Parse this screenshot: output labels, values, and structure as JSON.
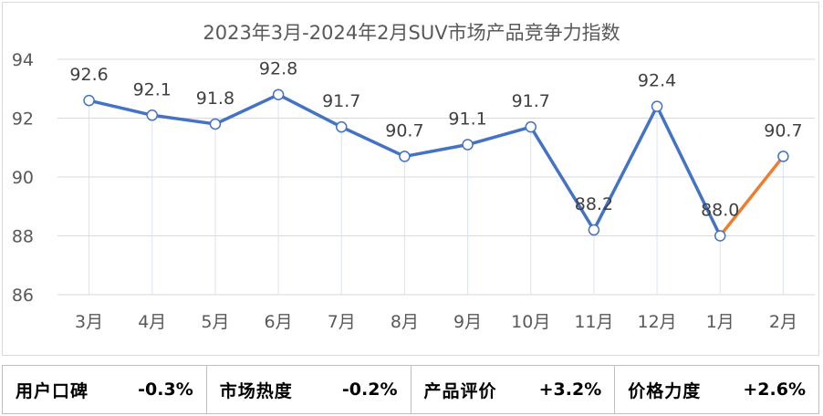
{
  "chart_data": {
    "type": "line",
    "title": "2023年3月-2024年2月SUV市场产品竞争力指数",
    "xlabel": "",
    "ylabel": "",
    "categories": [
      "3月",
      "4月",
      "5月",
      "6月",
      "7月",
      "8月",
      "9月",
      "10月",
      "11月",
      "12月",
      "1月",
      "2月"
    ],
    "values": [
      92.6,
      92.1,
      91.8,
      92.8,
      91.7,
      90.7,
      91.1,
      91.7,
      88.2,
      92.4,
      88.0,
      90.7
    ],
    "data_labels": [
      "92.6",
      "92.1",
      "91.8",
      "92.8",
      "91.7",
      "90.7",
      "91.1",
      "91.7",
      "88.2",
      "92.4",
      "88.0",
      "90.7"
    ],
    "ylim": [
      86,
      94
    ],
    "yticks": [
      "86",
      "88",
      "90",
      "92",
      "94"
    ],
    "grid": "horizontal",
    "colors": {
      "line": "#4472c4",
      "highlight_segment": "#ed7d31",
      "grid": "#d9d9d9",
      "drop_line": "#dae3f3"
    },
    "highlight_last_segment": true
  },
  "metrics": [
    {
      "label": "用户口碑",
      "value": "-0.3%"
    },
    {
      "label": "市场热度",
      "value": "-0.2%"
    },
    {
      "label": "产品评价",
      "value": "+3.2%"
    },
    {
      "label": "价格力度",
      "value": "+2.6%"
    }
  ]
}
